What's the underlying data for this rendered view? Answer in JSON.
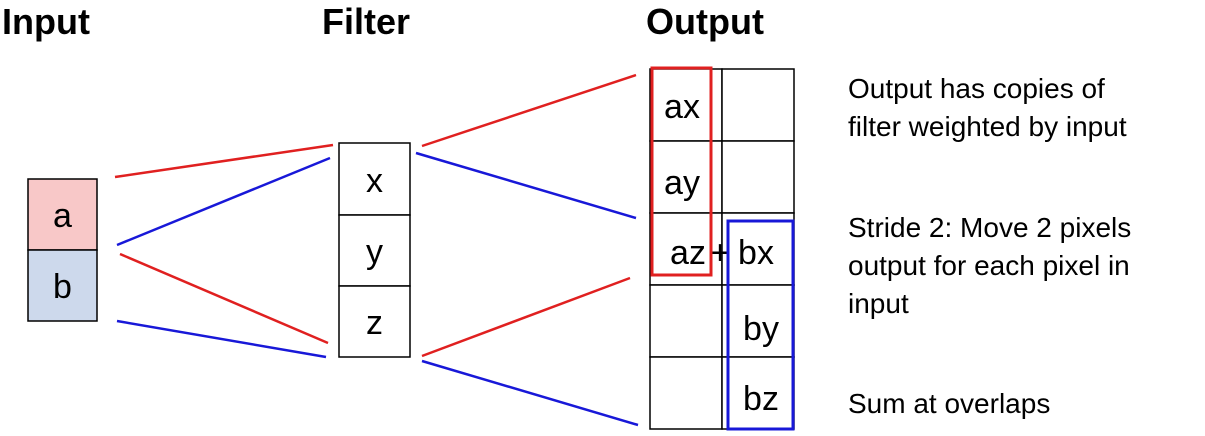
{
  "headings": {
    "input": "Input",
    "filter": "Filter",
    "output": "Output"
  },
  "input": {
    "cells": [
      "a",
      "b"
    ],
    "colors": [
      "#f8c8c8",
      "#cdd9ec"
    ]
  },
  "filter": {
    "cells": [
      "x",
      "y",
      "z"
    ]
  },
  "output": {
    "rows": [
      [
        "ax",
        ""
      ],
      [
        "ay",
        ""
      ],
      [
        "az",
        "bx"
      ],
      [
        "",
        "by"
      ],
      [
        "",
        "bz"
      ]
    ],
    "overlap_operator": "+"
  },
  "connection_colors": {
    "a": "#e02020",
    "b": "#1818d8"
  },
  "notes": {
    "copies": [
      "Output has copies of",
      "filter weighted by input"
    ],
    "stride": [
      "Stride 2: Move 2 pixels",
      "output for each pixel in",
      "input"
    ],
    "sum": [
      "Sum at overlaps"
    ]
  }
}
